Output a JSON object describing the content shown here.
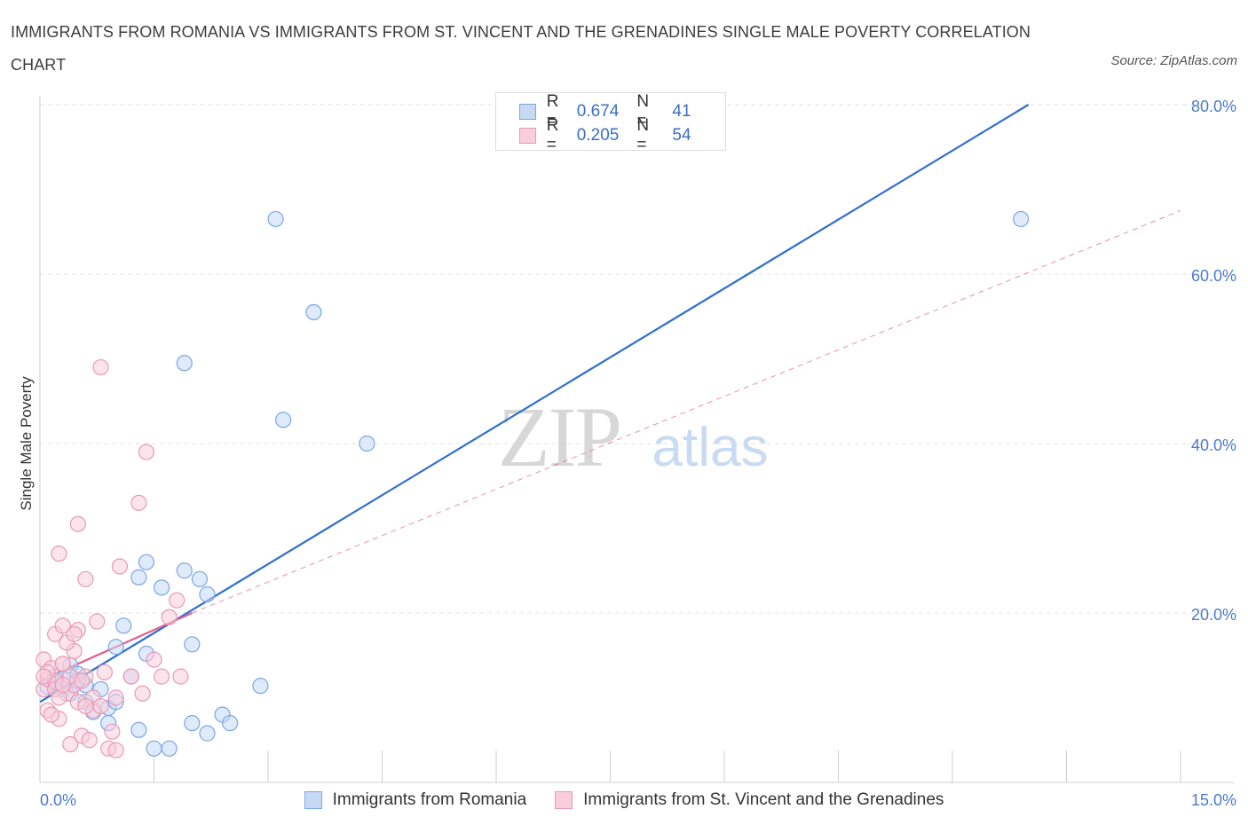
{
  "header": {
    "title": "IMMIGRANTS FROM ROMANIA VS IMMIGRANTS FROM ST. VINCENT AND THE GRENADINES SINGLE MALE POVERTY CORRELATION CHART",
    "source": "Source: ZipAtlas.com"
  },
  "watermark": {
    "zip": "ZIP",
    "atlas": "atlas"
  },
  "legend": {
    "r_label": "R =",
    "n_label": "N =",
    "series": [
      {
        "name": "Immigrants from Romania",
        "r": "0.674",
        "n": "41",
        "color": "#7aa7e6",
        "fill": "#c5d9f5",
        "line": "#2f6fd0"
      },
      {
        "name": "Immigrants from St. Vincent and the Grenadines",
        "r": "0.205",
        "n": "54",
        "color": "#e89ab5",
        "fill": "#f8cedc",
        "line": "#e0608c"
      }
    ]
  },
  "chart_data": {
    "type": "scatter",
    "title": "IMMIGRANTS FROM ROMANIA VS IMMIGRANTS FROM ST. VINCENT AND THE GRENADINES SINGLE MALE POVERTY CORRELATION CHART",
    "xlabel": "",
    "ylabel": "Single Male Poverty",
    "xlim": [
      0,
      15
    ],
    "ylim": [
      0,
      80
    ],
    "x_tick_labels": [
      "0.0%",
      "15.0%"
    ],
    "y_ticks": [
      20,
      40,
      60,
      80
    ],
    "y_tick_labels": [
      "20.0%",
      "40.0%",
      "60.0%",
      "80.0%"
    ],
    "grid": true,
    "legend_position": "bottom",
    "series": [
      {
        "name": "Immigrants from Romania",
        "points": [
          [
            0.1,
            11.3
          ],
          [
            0.2,
            12.5
          ],
          [
            0.2,
            11.8
          ],
          [
            0.3,
            11.0
          ],
          [
            0.3,
            12.2
          ],
          [
            0.4,
            13.8
          ],
          [
            0.4,
            10.5
          ],
          [
            0.5,
            12.8
          ],
          [
            0.6,
            11.5
          ],
          [
            0.6,
            9.5
          ],
          [
            0.7,
            8.3
          ],
          [
            0.8,
            11.0
          ],
          [
            0.9,
            7.0
          ],
          [
            0.9,
            8.8
          ],
          [
            1.0,
            9.5
          ],
          [
            1.0,
            16.0
          ],
          [
            1.1,
            18.5
          ],
          [
            1.2,
            12.5
          ],
          [
            1.3,
            6.2
          ],
          [
            1.3,
            24.2
          ],
          [
            1.4,
            26.0
          ],
          [
            1.4,
            15.2
          ],
          [
            1.5,
            4.0
          ],
          [
            1.6,
            23.0
          ],
          [
            1.7,
            4.0
          ],
          [
            1.9,
            25.0
          ],
          [
            1.9,
            49.5
          ],
          [
            2.0,
            16.3
          ],
          [
            2.0,
            7.0
          ],
          [
            2.1,
            24.0
          ],
          [
            2.2,
            22.2
          ],
          [
            2.2,
            5.8
          ],
          [
            2.4,
            8.0
          ],
          [
            2.5,
            7.0
          ],
          [
            2.9,
            11.4
          ],
          [
            3.1,
            66.5
          ],
          [
            3.2,
            42.8
          ],
          [
            3.6,
            55.5
          ],
          [
            4.3,
            40.0
          ],
          [
            12.9,
            66.5
          ],
          [
            0.5,
            12.0
          ]
        ]
      },
      {
        "name": "Immigrants from St. Vincent and the Grenadines",
        "points": [
          [
            0.05,
            14.5
          ],
          [
            0.05,
            11.0
          ],
          [
            0.1,
            12.2
          ],
          [
            0.1,
            8.5
          ],
          [
            0.15,
            13.5
          ],
          [
            0.2,
            17.5
          ],
          [
            0.2,
            12.0
          ],
          [
            0.25,
            27.0
          ],
          [
            0.25,
            7.5
          ],
          [
            0.3,
            18.5
          ],
          [
            0.3,
            14.0
          ],
          [
            0.35,
            10.5
          ],
          [
            0.4,
            4.5
          ],
          [
            0.45,
            15.5
          ],
          [
            0.45,
            11.5
          ],
          [
            0.5,
            18.0
          ],
          [
            0.5,
            9.5
          ],
          [
            0.5,
            30.5
          ],
          [
            0.55,
            5.5
          ],
          [
            0.6,
            24.0
          ],
          [
            0.6,
            12.5
          ],
          [
            0.65,
            5.0
          ],
          [
            0.7,
            8.5
          ],
          [
            0.7,
            10.0
          ],
          [
            0.75,
            19.0
          ],
          [
            0.8,
            49.0
          ],
          [
            0.8,
            9.0
          ],
          [
            0.85,
            13.0
          ],
          [
            0.9,
            4.0
          ],
          [
            0.95,
            6.0
          ],
          [
            1.0,
            3.8
          ],
          [
            1.0,
            10.0
          ],
          [
            1.05,
            25.5
          ],
          [
            1.2,
            12.5
          ],
          [
            1.3,
            33.0
          ],
          [
            1.35,
            10.5
          ],
          [
            1.4,
            39.0
          ],
          [
            1.5,
            14.5
          ],
          [
            1.6,
            12.5
          ],
          [
            1.7,
            19.5
          ],
          [
            1.8,
            21.5
          ],
          [
            1.85,
            12.5
          ],
          [
            0.15,
            8.0
          ],
          [
            0.2,
            11.0
          ],
          [
            0.3,
            14.0
          ],
          [
            0.35,
            16.5
          ],
          [
            0.4,
            12.5
          ],
          [
            0.45,
            17.5
          ],
          [
            0.55,
            12.0
          ],
          [
            0.1,
            13.0
          ],
          [
            0.25,
            10.0
          ],
          [
            0.6,
            9.0
          ],
          [
            0.3,
            11.5
          ],
          [
            0.05,
            12.5
          ]
        ]
      }
    ],
    "trend_lines": [
      {
        "series": "Immigrants from Romania",
        "style": "solid",
        "x": [
          0,
          13.0
        ],
        "y": [
          9.5,
          80.0
        ]
      },
      {
        "series": "Immigrants from St. Vincent and the Grenadines",
        "style": "solid",
        "x": [
          0,
          2.0
        ],
        "y": [
          12.0,
          20.0
        ]
      },
      {
        "series": "Immigrants from St. Vincent and the Grenadines",
        "style": "dashed",
        "x": [
          2.0,
          15.0
        ],
        "y": [
          20.0,
          67.5
        ]
      }
    ]
  }
}
